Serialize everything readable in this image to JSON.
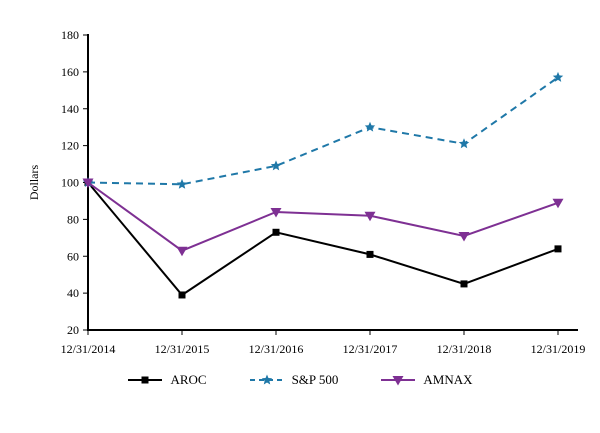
{
  "chart_data": {
    "type": "line",
    "title": "",
    "xlabel": "",
    "ylabel": "Dollars",
    "ylim": [
      20,
      180
    ],
    "ytick_step": 20,
    "grid": false,
    "legend_position": "bottom",
    "x": [
      "12/31/2014",
      "12/31/2015",
      "12/31/2016",
      "12/31/2017",
      "12/31/2018",
      "12/31/2019"
    ],
    "series": [
      {
        "name": "AROC",
        "values": [
          100,
          39,
          73,
          61,
          45,
          64
        ],
        "color": "#000000",
        "line_style": "solid",
        "marker": "square"
      },
      {
        "name": "S&P 500",
        "values": [
          100,
          99,
          109,
          130,
          121,
          157
        ],
        "color": "#1f78a8",
        "line_style": "dashed",
        "marker": "star"
      },
      {
        "name": "AMNAX",
        "values": [
          100,
          63,
          84,
          82,
          71,
          89
        ],
        "color": "#7e3093",
        "line_style": "solid",
        "marker": "triangle-down"
      }
    ]
  }
}
